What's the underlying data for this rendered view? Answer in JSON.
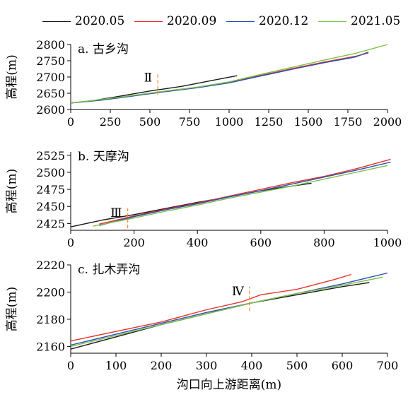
{
  "legend": [
    {
      "name": "2020.05",
      "color": "#1a1a1a"
    },
    {
      "name": "2020.09",
      "color": "#e8322a"
    },
    {
      "name": "2020.12",
      "color": "#2a4fb8"
    },
    {
      "name": "2021.05",
      "color": "#7cc043"
    }
  ],
  "chart_data": [
    {
      "type": "line",
      "title": "a. 古乡沟",
      "ylabel": "高程(m)",
      "xlabel": "",
      "xlim": [
        0,
        2000
      ],
      "ylim": [
        2600,
        2800
      ],
      "xticks": [
        0,
        250,
        500,
        750,
        1000,
        1250,
        1500,
        1750,
        2000
      ],
      "yticks": [
        2600,
        2650,
        2700,
        2750,
        2800
      ],
      "section_marker": {
        "label": "Ⅱ",
        "x": 550,
        "y_from": 2645,
        "y_to": 2712
      },
      "series": [
        {
          "name": "2020.05",
          "points": [
            [
              0,
              2620
            ],
            [
              150,
              2628
            ],
            [
              300,
              2640
            ],
            [
              500,
              2657
            ],
            [
              700,
              2671
            ],
            [
              900,
              2690
            ],
            [
              1050,
              2704
            ]
          ]
        },
        {
          "name": "2020.09",
          "points": [
            [
              0,
              2620
            ],
            [
              200,
              2630
            ],
            [
              400,
              2643
            ],
            [
              600,
              2657
            ],
            [
              800,
              2668
            ],
            [
              1000,
              2683
            ],
            [
              1200,
              2705
            ],
            [
              1400,
              2726
            ],
            [
              1600,
              2746
            ],
            [
              1800,
              2764
            ],
            [
              1880,
              2774
            ]
          ]
        },
        {
          "name": "2020.12",
          "points": [
            [
              0,
              2620
            ],
            [
              200,
              2629
            ],
            [
              400,
              2642
            ],
            [
              600,
              2655
            ],
            [
              800,
              2667
            ],
            [
              1000,
              2682
            ],
            [
              1200,
              2703
            ],
            [
              1400,
              2724
            ],
            [
              1600,
              2744
            ],
            [
              1800,
              2762
            ],
            [
              1880,
              2777
            ]
          ]
        },
        {
          "name": "2021.05",
          "points": [
            [
              0,
              2620
            ],
            [
              200,
              2631
            ],
            [
              400,
              2644
            ],
            [
              600,
              2657
            ],
            [
              800,
              2669
            ],
            [
              1000,
              2685
            ],
            [
              1200,
              2708
            ],
            [
              1400,
              2730
            ],
            [
              1600,
              2752
            ],
            [
              1800,
              2773
            ],
            [
              2000,
              2800
            ]
          ]
        }
      ]
    },
    {
      "type": "line",
      "title": "b. 天摩沟",
      "ylabel": "高程(m)",
      "xlabel": "",
      "xlim": [
        0,
        1000
      ],
      "ylim": [
        2415,
        2530
      ],
      "xticks": [
        0,
        200,
        400,
        600,
        800,
        1000
      ],
      "yticks": [
        2425,
        2450,
        2475,
        2500,
        2525
      ],
      "section_marker": {
        "label": "Ⅲ",
        "x": 180,
        "y_from": 2418,
        "y_to": 2447
      },
      "series": [
        {
          "name": "2020.05",
          "points": [
            [
              0,
              2420
            ],
            [
              100,
              2430
            ],
            [
              200,
              2438
            ],
            [
              300,
              2447
            ],
            [
              400,
              2456
            ],
            [
              500,
              2464
            ],
            [
              600,
              2473
            ],
            [
              700,
              2480
            ],
            [
              760,
              2484
            ]
          ]
        },
        {
          "name": "2020.09",
          "points": [
            [
              90,
              2424
            ],
            [
              200,
              2436
            ],
            [
              300,
              2446
            ],
            [
              400,
              2455
            ],
            [
              500,
              2465
            ],
            [
              600,
              2475
            ],
            [
              700,
              2485
            ],
            [
              800,
              2494
            ],
            [
              900,
              2505
            ],
            [
              1010,
              2519
            ]
          ]
        },
        {
          "name": "2020.12",
          "points": [
            [
              90,
              2422
            ],
            [
              200,
              2435
            ],
            [
              300,
              2445
            ],
            [
              400,
              2454
            ],
            [
              500,
              2464
            ],
            [
              600,
              2473
            ],
            [
              700,
              2483
            ],
            [
              800,
              2493
            ],
            [
              900,
              2503
            ],
            [
              1010,
              2515
            ]
          ]
        },
        {
          "name": "2021.05",
          "points": [
            [
              70,
              2421
            ],
            [
              200,
              2433
            ],
            [
              300,
              2443
            ],
            [
              400,
              2452
            ],
            [
              500,
              2462
            ],
            [
              600,
              2471
            ],
            [
              700,
              2480
            ],
            [
              800,
              2490
            ],
            [
              900,
              2500
            ],
            [
              1000,
              2510
            ]
          ]
        }
      ]
    },
    {
      "type": "line",
      "title": "c. 扎木弄沟",
      "ylabel": "高程(m)",
      "xlabel": "沟口向上游距离(m)",
      "xlim": [
        0,
        700
      ],
      "ylim": [
        2155,
        2220
      ],
      "xticks": [
        0,
        100,
        200,
        300,
        400,
        500,
        600,
        700
      ],
      "yticks": [
        2160,
        2180,
        2200,
        2220
      ],
      "section_marker": {
        "label": "Ⅳ",
        "x": 395,
        "y_from": 2186,
        "y_to": 2204
      },
      "series": [
        {
          "name": "2020.05",
          "points": [
            [
              0,
              2158
            ],
            [
              100,
              2167
            ],
            [
              200,
              2176
            ],
            [
              300,
              2184
            ],
            [
              400,
              2192
            ],
            [
              500,
              2198
            ],
            [
              600,
              2204
            ],
            [
              660,
              2207
            ]
          ]
        },
        {
          "name": "2020.09",
          "points": [
            [
              0,
              2164
            ],
            [
              100,
              2171
            ],
            [
              200,
              2178
            ],
            [
              300,
              2187
            ],
            [
              380,
              2193
            ],
            [
              420,
              2198
            ],
            [
              500,
              2202
            ],
            [
              580,
              2209
            ],
            [
              620,
              2213
            ]
          ]
        },
        {
          "name": "2020.12",
          "points": [
            [
              0,
              2161
            ],
            [
              100,
              2169
            ],
            [
              200,
              2177
            ],
            [
              300,
              2185
            ],
            [
              400,
              2192
            ],
            [
              500,
              2199
            ],
            [
              600,
              2206
            ],
            [
              700,
              2214
            ]
          ]
        },
        {
          "name": "2021.05",
          "points": [
            [
              0,
              2160
            ],
            [
              100,
              2168
            ],
            [
              200,
              2176
            ],
            [
              300,
              2184
            ],
            [
              400,
              2192
            ],
            [
              500,
              2199
            ],
            [
              600,
              2205
            ],
            [
              690,
              2211
            ]
          ]
        }
      ]
    }
  ]
}
